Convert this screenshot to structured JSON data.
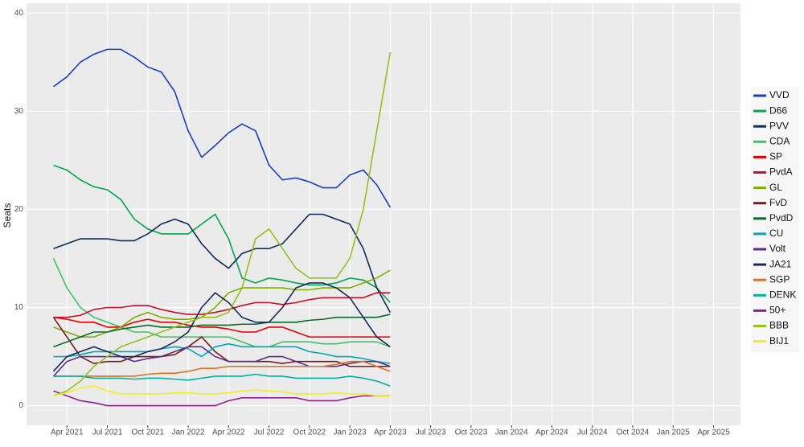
{
  "chart_data": {
    "type": "line",
    "y_label": "Seats",
    "x": [
      "2021-03",
      "2021-04",
      "2021-05",
      "2021-06",
      "2021-07",
      "2021-08",
      "2021-09",
      "2021-10",
      "2021-11",
      "2021-12",
      "2022-01",
      "2022-02",
      "2022-03",
      "2022-04",
      "2022-05",
      "2022-06",
      "2022-07",
      "2022-08",
      "2022-09",
      "2022-10",
      "2022-11",
      "2022-12",
      "2023-01",
      "2023-02",
      "2023-03",
      "2023-04"
    ],
    "xlim": [
      "2021-01",
      "2025-06"
    ],
    "xticks": [
      {
        "value": "2021-04",
        "label": "Apr 2021"
      },
      {
        "value": "2021-07",
        "label": "Jul 2021"
      },
      {
        "value": "2021-10",
        "label": "Oct 2021"
      },
      {
        "value": "2022-01",
        "label": "Jan 2022"
      },
      {
        "value": "2022-04",
        "label": "Apr 2022"
      },
      {
        "value": "2022-07",
        "label": "Jul 2022"
      },
      {
        "value": "2022-10",
        "label": "Oct 2022"
      },
      {
        "value": "2023-01",
        "label": "Jan 2023"
      },
      {
        "value": "2023-04",
        "label": "Apr 2023"
      },
      {
        "value": "2023-07",
        "label": "Jul 2023"
      },
      {
        "value": "2023-10",
        "label": "Oct 2023"
      },
      {
        "value": "2024-01",
        "label": "Jan 2024"
      },
      {
        "value": "2024-04",
        "label": "Apr 2024"
      },
      {
        "value": "2024-07",
        "label": "Jul 2024"
      },
      {
        "value": "2024-10",
        "label": "Oct 2024"
      },
      {
        "value": "2025-01",
        "label": "Jan 2025"
      },
      {
        "value": "2025-04",
        "label": "Apr 2025"
      }
    ],
    "ylim": [
      -2,
      41
    ],
    "yticks": [
      0,
      10,
      20,
      30,
      40
    ],
    "grid": true,
    "legend": "right",
    "series": [
      {
        "name": "VVD",
        "color": "#1a3fb8",
        "values": [
          32.5,
          33.5,
          35,
          35.8,
          36.3,
          36.3,
          35.5,
          34.5,
          34,
          32,
          28,
          25.3,
          26.5,
          27.8,
          28.7,
          28,
          24.5,
          23,
          23.2,
          22.8,
          22.2,
          22.2,
          23.5,
          24,
          22.5,
          20.2
        ]
      },
      {
        "name": "D66",
        "color": "#00a550",
        "values": [
          24.5,
          24,
          23,
          22.3,
          22,
          21,
          19,
          18,
          17.5,
          17.5,
          17.5,
          18.5,
          19.5,
          17,
          13,
          12.5,
          13,
          12.8,
          12.5,
          12.3,
          12.3,
          12.5,
          13,
          12.8,
          12,
          10.5
        ]
      },
      {
        "name": "PVV",
        "color": "#0f2a5c",
        "values": [
          16,
          16.5,
          17,
          17,
          17,
          16.8,
          16.8,
          17.5,
          18.5,
          19,
          18.5,
          16.5,
          15,
          14,
          15.5,
          16,
          16,
          16.5,
          18,
          19.5,
          19.5,
          19,
          18.5,
          16,
          12,
          9.5
        ]
      },
      {
        "name": "CDA",
        "color": "#3ec460",
        "values": [
          15,
          12,
          10,
          9,
          8.5,
          8,
          7.5,
          7.5,
          7,
          7,
          7,
          7,
          7,
          7,
          6.5,
          6,
          6,
          6.5,
          6.5,
          6.5,
          6.3,
          6.3,
          6.5,
          6.5,
          6.5,
          6
        ]
      },
      {
        "name": "SP",
        "color": "#e00000",
        "values": [
          9,
          8.8,
          8.5,
          8.5,
          8,
          8,
          8.5,
          8.8,
          8.5,
          8.5,
          8.2,
          8,
          8,
          7.8,
          7.5,
          7.5,
          8,
          8,
          7.5,
          7,
          7,
          7,
          7,
          7,
          7,
          7
        ]
      },
      {
        "name": "PvdA",
        "color": "#c8102e",
        "values": [
          9,
          9,
          9.2,
          9.8,
          10,
          10,
          10.2,
          10.2,
          9.8,
          9.5,
          9.3,
          9.3,
          9.5,
          9.8,
          10.2,
          10.5,
          10.5,
          10.3,
          10.5,
          10.8,
          11,
          11,
          11,
          11,
          11.5,
          11.5
        ]
      },
      {
        "name": "GL",
        "color": "#7fae00",
        "values": [
          8,
          7.5,
          7,
          7,
          7.5,
          8,
          9,
          9.5,
          9,
          8.8,
          8.8,
          9,
          10,
          11.5,
          12,
          12,
          12,
          12,
          11.8,
          11.8,
          12,
          12,
          12,
          12.5,
          13,
          13.8
        ]
      },
      {
        "name": "FvD",
        "color": "#7b1c1c",
        "values": [
          9,
          7,
          5,
          4.3,
          4.5,
          4.5,
          5,
          5,
          5,
          5.2,
          6,
          7,
          5.5,
          4.5,
          4.5,
          4.5,
          4.5,
          4.3,
          4.5,
          4.5,
          4.5,
          4.5,
          4,
          4,
          4,
          4
        ]
      },
      {
        "name": "PvdD",
        "color": "#0a6b2b",
        "values": [
          6,
          6.5,
          7,
          7.5,
          7.5,
          7.8,
          8,
          8.2,
          8,
          8,
          8,
          8.2,
          8.2,
          8.2,
          8.3,
          8.3,
          8.5,
          8.5,
          8.5,
          8.7,
          8.8,
          9,
          9,
          9,
          9,
          9.3
        ]
      },
      {
        "name": "CU",
        "color": "#00a8b8",
        "values": [
          5,
          5,
          5.2,
          5.5,
          5.5,
          5.5,
          5.5,
          5.5,
          5.8,
          6,
          5.8,
          5,
          6,
          6.3,
          6,
          6,
          6,
          6,
          6,
          5.5,
          5.3,
          5,
          5,
          4.8,
          4.5,
          4.3
        ]
      },
      {
        "name": "Volt",
        "color": "#5a2d8a",
        "values": [
          3,
          4.5,
          5,
          5,
          5,
          5,
          4.5,
          4.8,
          5,
          5.5,
          6,
          6,
          5,
          4.5,
          4.5,
          4.5,
          5,
          5,
          4.5,
          4,
          4,
          4,
          4.3,
          4.5,
          4.5,
          4
        ]
      },
      {
        "name": "JA21",
        "color": "#1b2a5a",
        "values": [
          3.5,
          5,
          5.5,
          6,
          5.5,
          5,
          5,
          5.5,
          5.8,
          6.5,
          7.5,
          10,
          11.5,
          10.5,
          9,
          8.5,
          8.5,
          10,
          12,
          12.5,
          12.5,
          12,
          11,
          9,
          7,
          6
        ]
      },
      {
        "name": "SGP",
        "color": "#e07020",
        "values": [
          3,
          3,
          3,
          3,
          3,
          3,
          3,
          3.2,
          3.3,
          3.3,
          3.5,
          3.8,
          3.8,
          4,
          4,
          4,
          4,
          4,
          4,
          4,
          4,
          4.2,
          4.5,
          4.5,
          4,
          3.5
        ]
      },
      {
        "name": "DENK",
        "color": "#00b0a0",
        "values": [
          3,
          3,
          3,
          2.8,
          2.8,
          2.8,
          2.7,
          2.8,
          2.8,
          2.7,
          2.6,
          2.8,
          3,
          3,
          3,
          3.2,
          3,
          3,
          2.8,
          2.8,
          2.8,
          2.8,
          3,
          2.8,
          2.5,
          2
        ]
      },
      {
        "name": "50+",
        "color": "#902090",
        "values": [
          1.5,
          1,
          0.5,
          0.3,
          0,
          0,
          0,
          0,
          0,
          0,
          0,
          0,
          0,
          0.5,
          0.8,
          0.8,
          0.8,
          0.8,
          0.8,
          0.5,
          0.5,
          0.5,
          0.8,
          1,
          1,
          1
        ]
      },
      {
        "name": "BBB",
        "color": "#96c020",
        "values": [
          1,
          1.5,
          2.5,
          4,
          5,
          6,
          6.5,
          7,
          7.5,
          8,
          8.5,
          9,
          9,
          9.5,
          12,
          17,
          18,
          16,
          14,
          13,
          13,
          13,
          15,
          20,
          28,
          36
        ]
      },
      {
        "name": "BIJ1",
        "color": "#f0f020",
        "values": [
          1,
          1.3,
          1.8,
          2,
          1.5,
          1.2,
          1.2,
          1.2,
          1.2,
          1.3,
          1.3,
          1.2,
          1.2,
          1.3,
          1.5,
          1.6,
          1.5,
          1.4,
          1.2,
          1.2,
          1.2,
          1.3,
          1.2,
          1.2,
          1,
          1
        ]
      }
    ]
  }
}
